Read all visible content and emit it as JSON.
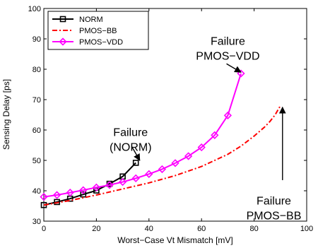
{
  "chart_data": {
    "type": "line",
    "xlabel": "Worst−Case Vt Mismatch [mV]",
    "ylabel": "Sensing Delay [ps]",
    "xlim": [
      0,
      100
    ],
    "ylim": [
      30,
      100
    ],
    "xticks": [
      0,
      20,
      40,
      60,
      80,
      100
    ],
    "yticks": [
      30,
      40,
      50,
      60,
      70,
      80,
      90,
      100
    ],
    "grid": false,
    "legend_position": "top-left",
    "series": [
      {
        "name": "NORM",
        "color": "#000000",
        "style": "solid",
        "marker": "square",
        "x": [
          0,
          5,
          10,
          15,
          20,
          25,
          30,
          35
        ],
        "y": [
          35.3,
          36.3,
          37.4,
          38.8,
          40.1,
          42.3,
          44.7,
          49.2
        ]
      },
      {
        "name": "PMOS−BB",
        "color": "#ff0000",
        "style": "dashdot",
        "marker": "none",
        "x": [
          0,
          10,
          20,
          30,
          40,
          50,
          60,
          70,
          75,
          80,
          84,
          86,
          88,
          89,
          90
        ],
        "y": [
          35.3,
          36.8,
          38.6,
          40.6,
          42.6,
          45.0,
          48.0,
          52.0,
          54.7,
          58.0,
          61.0,
          62.8,
          65.0,
          66.5,
          68.0
        ]
      },
      {
        "name": "PMOS−VDD",
        "color": "#ff00ff",
        "style": "solid",
        "marker": "diamond",
        "x": [
          0,
          5,
          10,
          15,
          20,
          25,
          30,
          35,
          40,
          45,
          50,
          55,
          60,
          65,
          70,
          75
        ],
        "y": [
          38.0,
          38.6,
          39.4,
          40.2,
          41.1,
          41.9,
          42.9,
          44.1,
          45.5,
          47.1,
          49.1,
          51.4,
          54.3,
          58.3,
          64.8,
          78.6
        ]
      }
    ],
    "annotations": [
      {
        "lines": [
          "Failure",
          "(NORM)"
        ],
        "x": 33,
        "y": 58
      },
      {
        "lines": [
          "Failure",
          "PMOS−VDD"
        ],
        "x": 70,
        "y": 88
      },
      {
        "lines": [
          "Failure",
          "PMOS−BB"
        ],
        "x": 87.5,
        "y": 35.5
      }
    ]
  }
}
